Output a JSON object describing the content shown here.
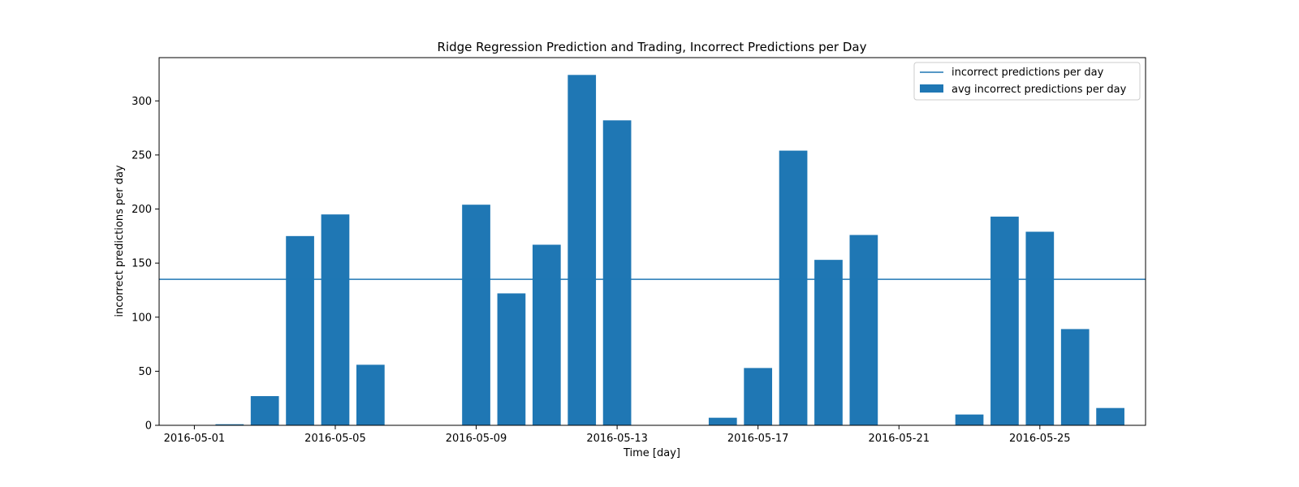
{
  "chart_data": {
    "type": "bar",
    "title": "Ridge Regression Prediction and Trading, Incorrect Predictions per Day",
    "xlabel": "Time [day]",
    "ylabel": "incorrect predictions per day",
    "x_start": "2016-05-01",
    "xlim": [
      "2016-04-30",
      "2016-05-28"
    ],
    "ylim": [
      0,
      340
    ],
    "x_ticks": [
      "2016-05-01",
      "2016-05-05",
      "2016-05-09",
      "2016-05-13",
      "2016-05-17",
      "2016-05-21",
      "2016-05-25"
    ],
    "y_ticks": [
      0,
      50,
      100,
      150,
      200,
      250,
      300
    ],
    "bars": [
      {
        "date": "2016-05-02",
        "value": 1
      },
      {
        "date": "2016-05-03",
        "value": 27
      },
      {
        "date": "2016-05-04",
        "value": 175
      },
      {
        "date": "2016-05-05",
        "value": 195
      },
      {
        "date": "2016-05-06",
        "value": 56
      },
      {
        "date": "2016-05-09",
        "value": 204
      },
      {
        "date": "2016-05-10",
        "value": 122
      },
      {
        "date": "2016-05-11",
        "value": 167
      },
      {
        "date": "2016-05-12",
        "value": 324
      },
      {
        "date": "2016-05-13",
        "value": 282
      },
      {
        "date": "2016-05-16",
        "value": 7
      },
      {
        "date": "2016-05-17",
        "value": 53
      },
      {
        "date": "2016-05-18",
        "value": 254
      },
      {
        "date": "2016-05-19",
        "value": 153
      },
      {
        "date": "2016-05-20",
        "value": 176
      },
      {
        "date": "2016-05-23",
        "value": 10
      },
      {
        "date": "2016-05-24",
        "value": 193
      },
      {
        "date": "2016-05-25",
        "value": 179
      },
      {
        "date": "2016-05-26",
        "value": 89
      },
      {
        "date": "2016-05-27",
        "value": 16
      }
    ],
    "hline_value": 135,
    "legend": {
      "placement": "top-right",
      "entries": [
        {
          "label": "incorrect predictions per day",
          "kind": "line"
        },
        {
          "label": "avg incorrect predictions per day",
          "kind": "bar"
        }
      ]
    },
    "grid": false,
    "colors": {
      "series": "#1f77b4",
      "axis": "#000000",
      "legend_border": "#cccccc"
    }
  }
}
